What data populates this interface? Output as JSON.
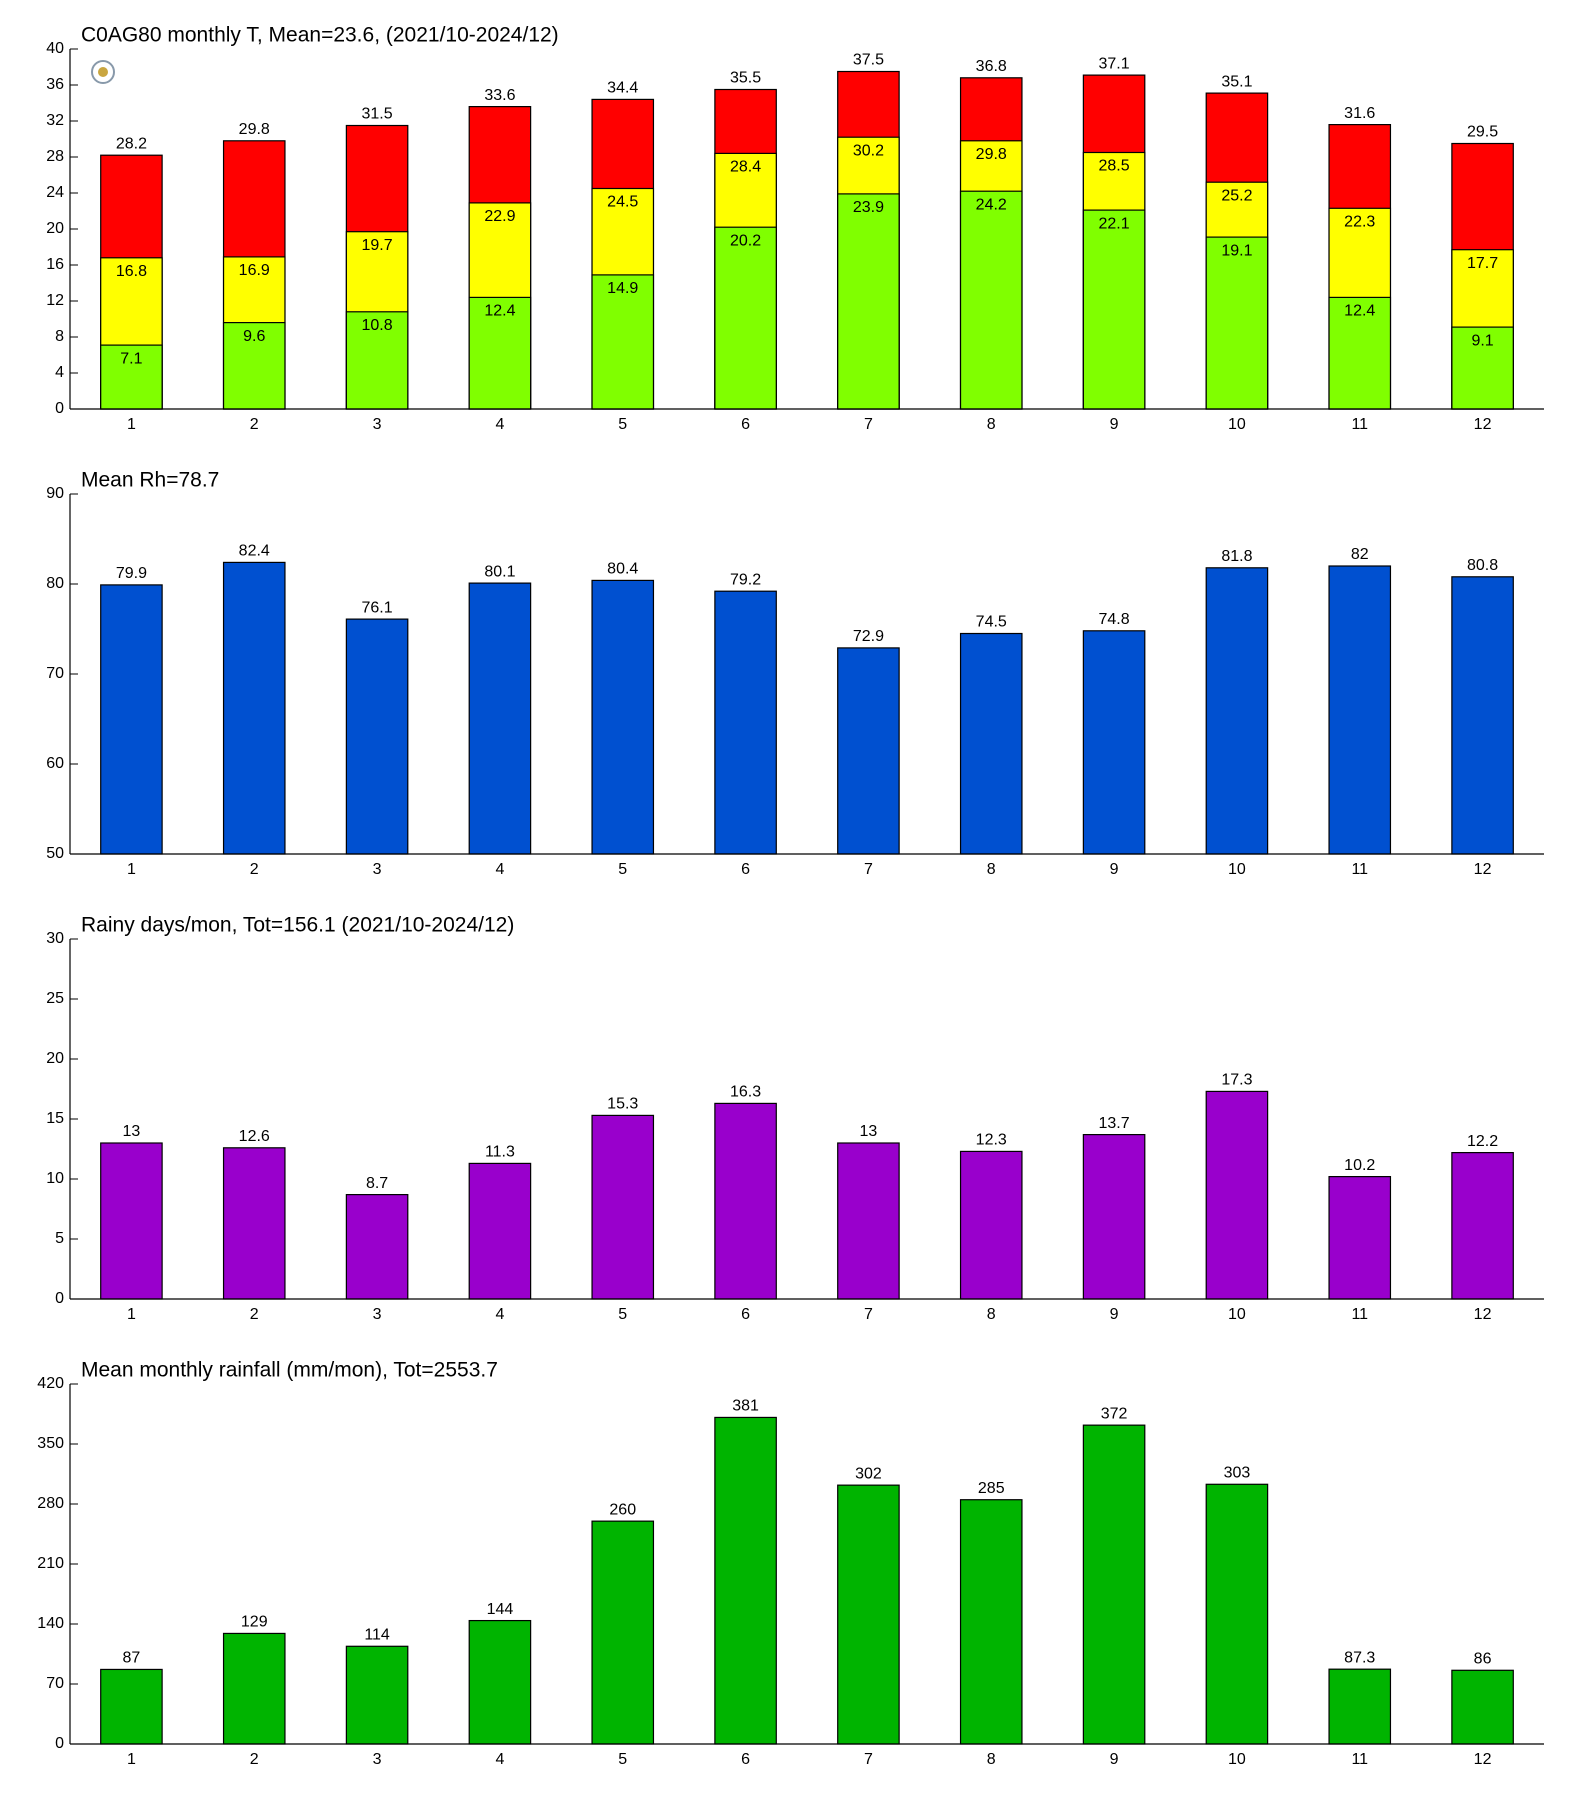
{
  "chart_data": [
    {
      "type": "bar",
      "title": "C0AG80 monthly T, Mean=23.6, (2021/10-2024/12)",
      "categories": [
        "1",
        "2",
        "3",
        "4",
        "5",
        "6",
        "7",
        "8",
        "9",
        "10",
        "11",
        "12"
      ],
      "series": [
        {
          "color": "#ff0000",
          "values": [
            28.2,
            29.8,
            31.5,
            33.6,
            34.4,
            35.5,
            37.5,
            36.8,
            37.1,
            35.1,
            31.6,
            29.5
          ]
        },
        {
          "color": "#ffff00",
          "values": [
            16.8,
            16.9,
            19.7,
            22.9,
            24.5,
            28.4,
            30.2,
            29.8,
            28.5,
            25.2,
            22.3,
            17.7
          ]
        },
        {
          "color": "#80ff00",
          "values": [
            7.1,
            9.6,
            10.8,
            12.4,
            14.9,
            20.2,
            23.9,
            24.2,
            22.1,
            19.1,
            12.4,
            9.1
          ]
        }
      ],
      "ylim": [
        0,
        40
      ],
      "yticks": [
        0,
        4,
        8,
        12,
        16,
        20,
        24,
        28,
        32,
        36,
        40
      ]
    },
    {
      "type": "bar",
      "title": "Mean Rh=78.7",
      "categories": [
        "1",
        "2",
        "3",
        "4",
        "5",
        "6",
        "7",
        "8",
        "9",
        "10",
        "11",
        "12"
      ],
      "values": [
        79.9,
        82.4,
        76.1,
        80.1,
        80.4,
        79.2,
        72.9,
        74.5,
        74.8,
        81.8,
        82,
        80.8
      ],
      "color": "#0050d0",
      "ylim": [
        50,
        90
      ],
      "yticks": [
        50,
        60,
        70,
        80,
        90
      ]
    },
    {
      "type": "bar",
      "title": "Rainy days/mon, Tot=156.1 (2021/10-2024/12)",
      "categories": [
        "1",
        "2",
        "3",
        "4",
        "5",
        "6",
        "7",
        "8",
        "9",
        "10",
        "11",
        "12"
      ],
      "values": [
        13,
        12.6,
        8.7,
        11.3,
        15.3,
        16.3,
        13,
        12.3,
        13.7,
        17.3,
        10.2,
        12.2
      ],
      "color": "#9900cc",
      "ylim": [
        0,
        30
      ],
      "yticks": [
        0,
        5,
        10,
        15,
        20,
        25,
        30
      ]
    },
    {
      "type": "bar",
      "title": "Mean monthly rainfall (mm/mon), Tot=2553.7",
      "categories": [
        "1",
        "2",
        "3",
        "4",
        "5",
        "6",
        "7",
        "8",
        "9",
        "10",
        "11",
        "12"
      ],
      "values": [
        87,
        129,
        114,
        144,
        260,
        381,
        302,
        285,
        372,
        303,
        87.3,
        86
      ],
      "color": "#00b400",
      "ylim": [
        0,
        420
      ],
      "yticks": [
        0,
        70,
        140,
        210,
        280,
        350,
        420
      ]
    }
  ]
}
